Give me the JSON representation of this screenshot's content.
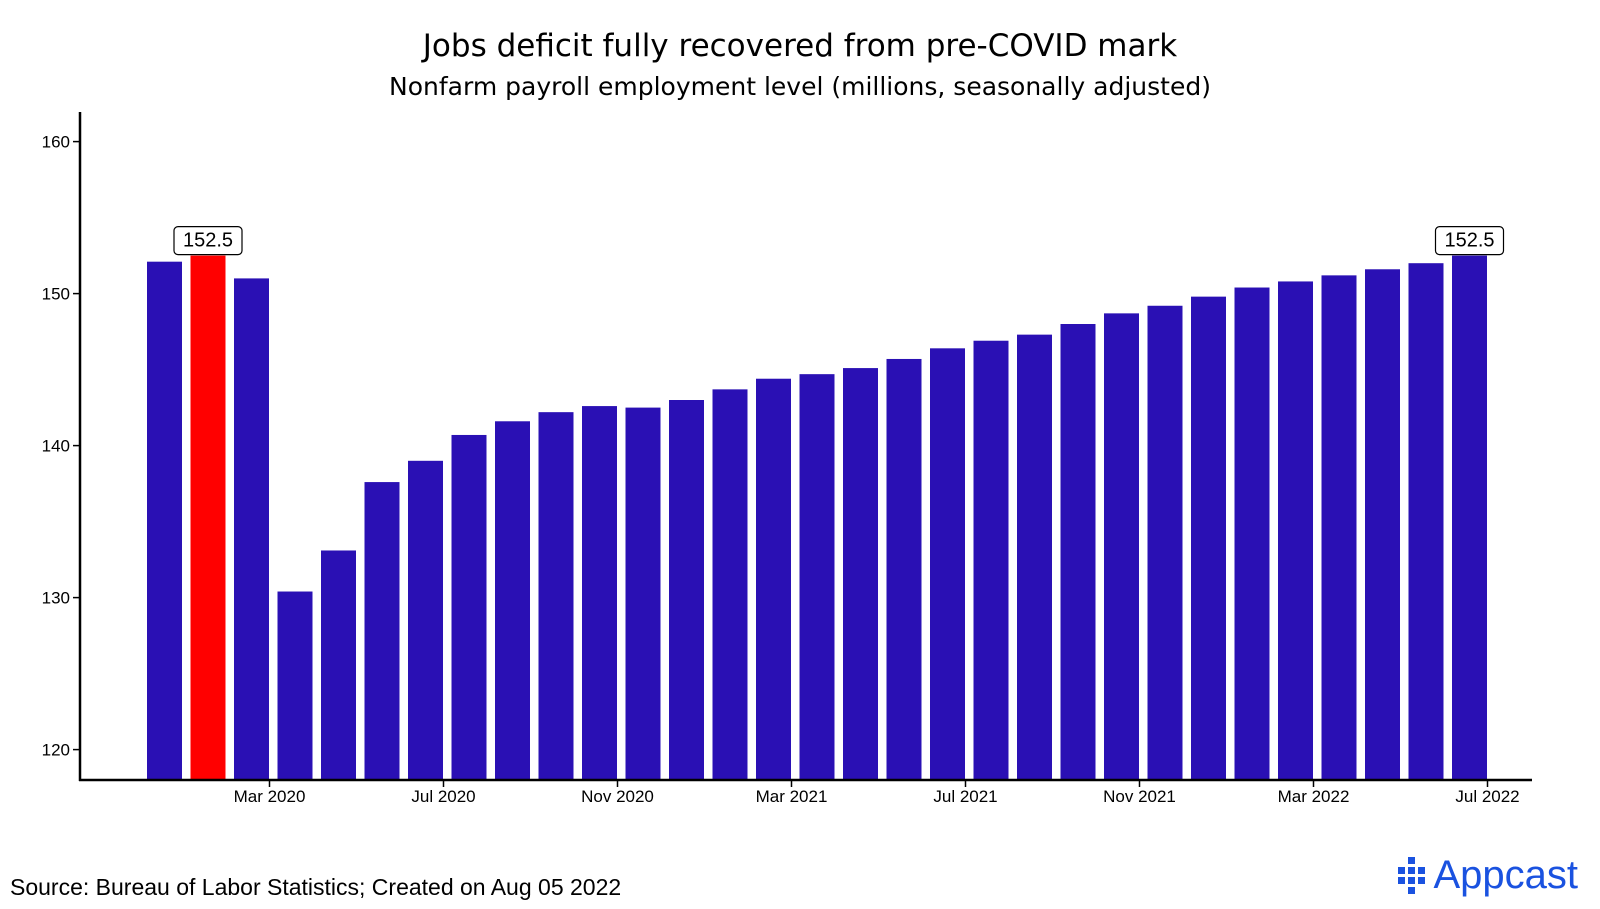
{
  "chart_data": {
    "type": "bar",
    "title": "Jobs deficit fully recovered from pre-COVID mark",
    "subtitle": "Nonfarm payroll employment level (millions, seasonally adjusted)",
    "xlabel": "",
    "ylabel": "",
    "ylim": [
      118,
      162
    ],
    "yticks": [
      120,
      130,
      140,
      150,
      160
    ],
    "categories": [
      "Jan 2020",
      "Feb 2020",
      "Mar 2020",
      "Apr 2020",
      "May 2020",
      "Jun 2020",
      "Jul 2020",
      "Aug 2020",
      "Sep 2020",
      "Oct 2020",
      "Nov 2020",
      "Dec 2020",
      "Jan 2021",
      "Feb 2021",
      "Mar 2021",
      "Apr 2021",
      "May 2021",
      "Jun 2021",
      "Jul 2021",
      "Aug 2021",
      "Sep 2021",
      "Oct 2021",
      "Nov 2021",
      "Dec 2021",
      "Jan 2022",
      "Feb 2022",
      "Mar 2022",
      "Apr 2022",
      "May 2022",
      "Jun 2022",
      "Jul 2022"
    ],
    "values": [
      152.1,
      152.5,
      151.0,
      130.4,
      133.1,
      137.6,
      139.0,
      140.7,
      141.6,
      142.2,
      142.6,
      142.5,
      143.0,
      143.7,
      144.4,
      144.7,
      145.1,
      145.7,
      146.4,
      146.9,
      147.3,
      148.0,
      148.7,
      149.2,
      149.8,
      150.4,
      150.8,
      151.2,
      151.6,
      152.0,
      152.5
    ],
    "highlight_index": 1,
    "xtick_labels": [
      {
        "index": 2,
        "label": "Mar 2020"
      },
      {
        "index": 6,
        "label": "Jul 2020"
      },
      {
        "index": 10,
        "label": "Nov 2020"
      },
      {
        "index": 14,
        "label": "Mar 2021"
      },
      {
        "index": 18,
        "label": "Jul 2021"
      },
      {
        "index": 22,
        "label": "Nov 2021"
      },
      {
        "index": 26,
        "label": "Mar 2022"
      },
      {
        "index": 30,
        "label": "Jul 2022"
      }
    ],
    "annotations": [
      {
        "index": 1,
        "text": "152.5"
      },
      {
        "index": 30,
        "text": "152.5"
      }
    ],
    "colors": {
      "bar": "#2a10b4",
      "highlight": "#ff0000"
    },
    "grid": false,
    "legend": "none"
  },
  "footer": {
    "source": "Source: Bureau of Labor Statistics; Created on Aug 05 2022",
    "brand": "Appcast"
  }
}
